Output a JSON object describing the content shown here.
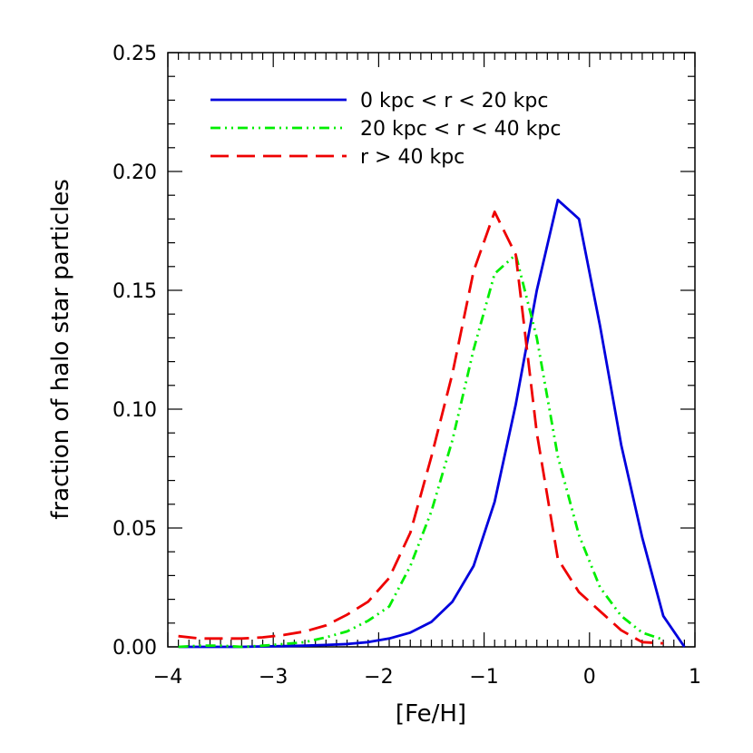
{
  "chart_data": {
    "type": "line",
    "title": "",
    "xlabel": "[Fe/H]",
    "ylabel": "fraction of halo star particles",
    "xlim": [
      -4,
      1
    ],
    "ylim": [
      0,
      0.25
    ],
    "x_ticks": [
      {
        "value": -4,
        "label": "−4"
      },
      {
        "value": -3,
        "label": "−3"
      },
      {
        "value": -2,
        "label": "−2"
      },
      {
        "value": -1,
        "label": "−1"
      },
      {
        "value": 0,
        "label": "0"
      },
      {
        "value": 1,
        "label": "1"
      }
    ],
    "y_ticks": [
      {
        "value": 0.0,
        "label": "0.00"
      },
      {
        "value": 0.05,
        "label": "0.05"
      },
      {
        "value": 0.1,
        "label": "0.10"
      },
      {
        "value": 0.15,
        "label": "0.15"
      },
      {
        "value": 0.2,
        "label": "0.20"
      },
      {
        "value": 0.25,
        "label": "0.25"
      }
    ],
    "grid": false,
    "legend_position": "top-left",
    "series": [
      {
        "name": "0 kpc < r < 20 kpc",
        "color": "#0000dd",
        "dash": "solid",
        "x": [
          -3.9,
          -3.7,
          -3.5,
          -3.3,
          -3.1,
          -2.9,
          -2.7,
          -2.5,
          -2.3,
          -2.1,
          -1.9,
          -1.7,
          -1.5,
          -1.3,
          -1.1,
          -0.9,
          -0.7,
          -0.5,
          -0.3,
          -0.1,
          0.1,
          0.3,
          0.5,
          0.7,
          0.9
        ],
        "y": [
          0.0,
          0.0,
          0.0,
          0.0,
          0.0002,
          0.0003,
          0.0005,
          0.0008,
          0.0012,
          0.002,
          0.0035,
          0.006,
          0.0105,
          0.019,
          0.034,
          0.061,
          0.102,
          0.15,
          0.188,
          0.18,
          0.135,
          0.085,
          0.046,
          0.013,
          0.0
        ]
      },
      {
        "name": "20 kpc < r < 40 kpc",
        "color": "#00ee00",
        "dash": "dash-dot-dot",
        "x": [
          -3.9,
          -3.7,
          -3.5,
          -3.3,
          -3.1,
          -2.9,
          -2.7,
          -2.5,
          -2.3,
          -2.1,
          -1.9,
          -1.7,
          -1.5,
          -1.3,
          -1.1,
          -0.9,
          -0.7,
          -0.5,
          -0.3,
          -0.1,
          0.1,
          0.3,
          0.5,
          0.7
        ],
        "y": [
          0.0,
          0.0005,
          0.0005,
          0.0,
          0.0005,
          0.0012,
          0.002,
          0.004,
          0.0065,
          0.011,
          0.017,
          0.034,
          0.057,
          0.087,
          0.125,
          0.157,
          0.165,
          0.13,
          0.08,
          0.047,
          0.025,
          0.013,
          0.006,
          0.003
        ]
      },
      {
        "name": "r > 40 kpc",
        "color": "#ee0000",
        "dash": "dash",
        "x": [
          -3.9,
          -3.7,
          -3.5,
          -3.3,
          -3.1,
          -2.9,
          -2.7,
          -2.5,
          -2.3,
          -2.1,
          -1.9,
          -1.7,
          -1.5,
          -1.3,
          -1.1,
          -0.9,
          -0.7,
          -0.5,
          -0.3,
          -0.1,
          0.1,
          0.3,
          0.5,
          0.7
        ],
        "y": [
          0.0045,
          0.0035,
          0.0035,
          0.0035,
          0.004,
          0.005,
          0.0065,
          0.009,
          0.0135,
          0.019,
          0.029,
          0.048,
          0.08,
          0.115,
          0.158,
          0.183,
          0.165,
          0.09,
          0.037,
          0.023,
          0.015,
          0.007,
          0.002,
          0.0015
        ]
      }
    ]
  }
}
